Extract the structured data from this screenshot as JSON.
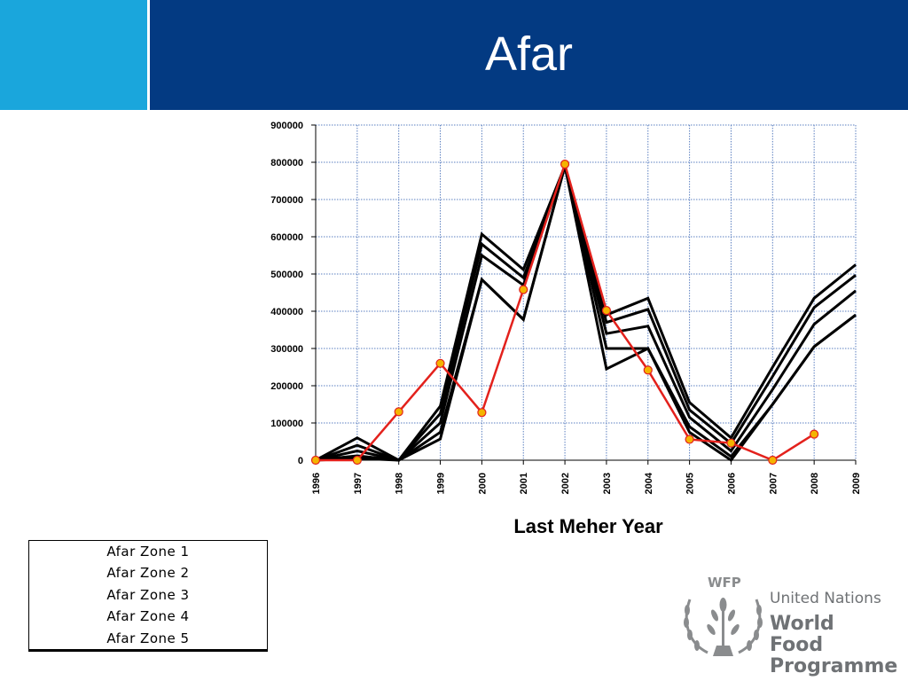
{
  "slide": {
    "title": "Afar"
  },
  "chart_data": {
    "type": "line",
    "title": "",
    "xlabel": "Last Meher Year",
    "ylabel": "",
    "x": [
      "1996",
      "1997",
      "1998",
      "1999",
      "2000",
      "2001",
      "2002",
      "2003",
      "2004",
      "2005",
      "2006",
      "2007",
      "2008",
      "2009"
    ],
    "ylim": [
      0,
      900000
    ],
    "yticks": [
      "0",
      "100000",
      "200000",
      "300000",
      "400000",
      "500000",
      "600000",
      "700000",
      "800000",
      "900000"
    ],
    "grid": true,
    "legend": "bottom-left",
    "series": [
      {
        "name": "Afar Zone 1",
        "color": "#000000",
        "marker": "none",
        "values": [
          0,
          60000,
          0,
          145000,
          607000,
          512000,
          790000,
          390000,
          435000,
          155000,
          60000,
          250000,
          435000,
          525000
        ]
      },
      {
        "name": "Afar Zone 2",
        "color": "#000000",
        "marker": "none",
        "values": [
          0,
          40000,
          0,
          125000,
          580000,
          490000,
          790000,
          370000,
          405000,
          135000,
          45000,
          225000,
          410000,
          497000
        ]
      },
      {
        "name": "Afar Zone 3",
        "color": "#000000",
        "marker": "none",
        "values": [
          0,
          25000,
          0,
          100000,
          550000,
          470000,
          790000,
          340000,
          360000,
          115000,
          25000,
          190000,
          365000,
          455000
        ]
      },
      {
        "name": "Afar Zone 4",
        "color": "#000000",
        "marker": "none",
        "values": [
          0,
          12000,
          0,
          75000,
          485000,
          378000,
          790000,
          300000,
          300000,
          90000,
          10000,
          150000,
          305000,
          390000
        ]
      },
      {
        "name": "Afar Zone 5",
        "color": "#000000",
        "marker": "none",
        "values": [
          0,
          5000,
          0,
          57000,
          485000,
          378000,
          790000,
          245000,
          300000,
          75000,
          0,
          150000,
          305000,
          390000
        ]
      },
      {
        "name": "",
        "color": "#e3211c",
        "marker": "circle",
        "marker_color": "#f4b400",
        "values": [
          0,
          0,
          130000,
          260000,
          128000,
          458000,
          795000,
          402000,
          242000,
          56000,
          46000,
          0,
          70000,
          null
        ]
      }
    ]
  },
  "legend_items": [
    "Afar Zone 1",
    "Afar Zone 2",
    "Afar Zone 3",
    "Afar Zone 4",
    "Afar Zone 5"
  ],
  "logo": {
    "abbr": "WFP",
    "org": "United Nations",
    "name_line1": "World Food",
    "name_line2": "Programme",
    "color": "#6f7275"
  }
}
